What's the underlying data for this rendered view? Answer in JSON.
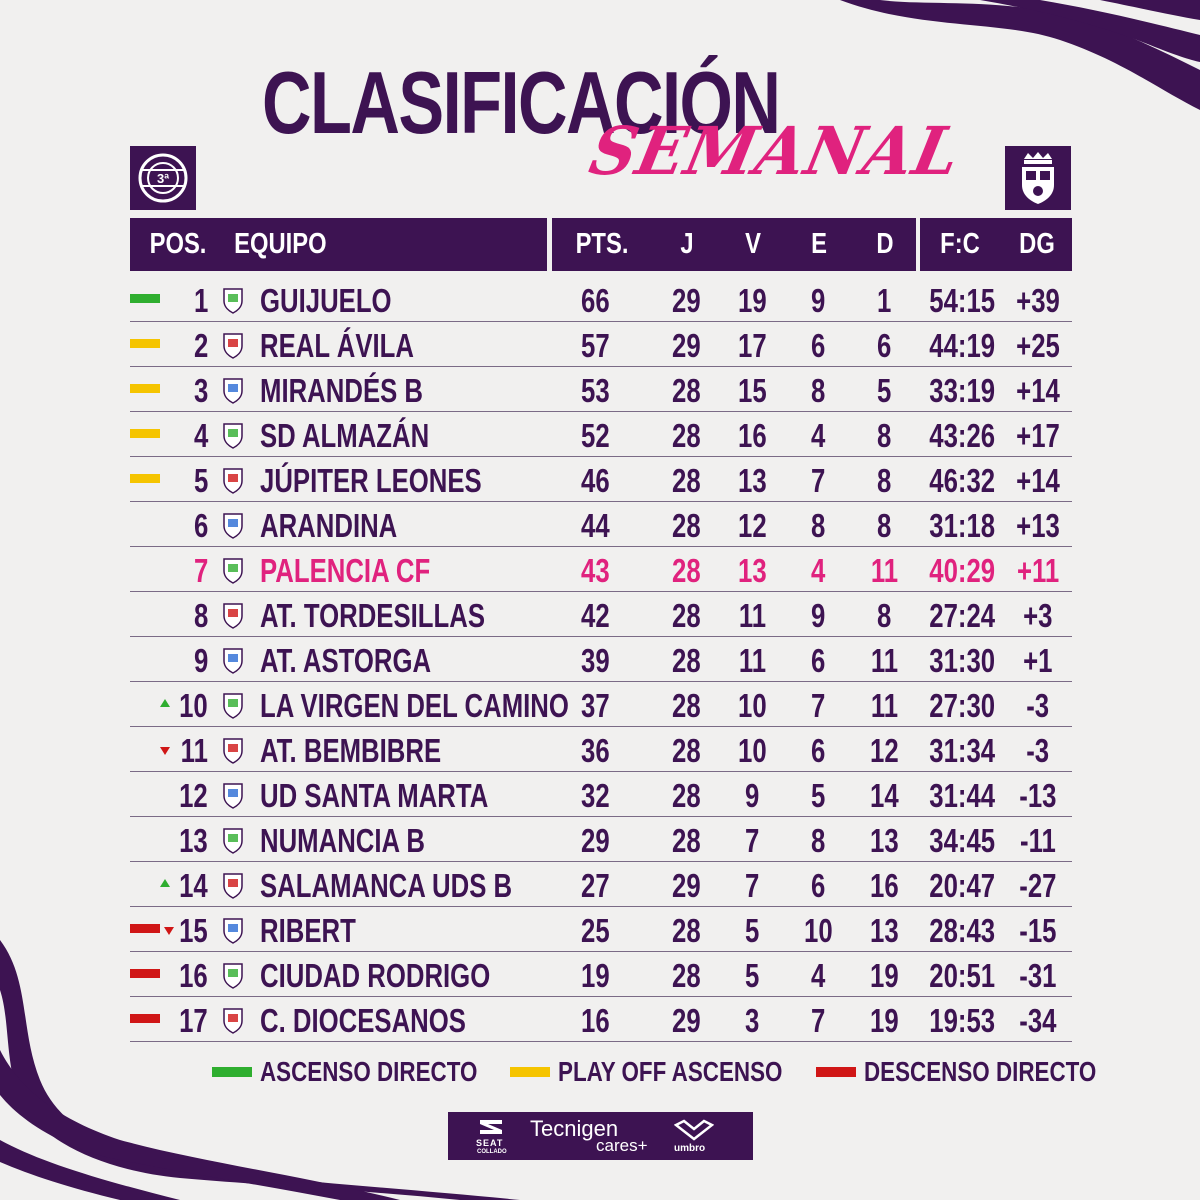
{
  "title": "CLASIFICACIÓN",
  "subtitle": "SEMANAL",
  "left_badge": {
    "text": "3ª",
    "icon": "league-logo-icon"
  },
  "right_badge": {
    "icon": "club-crest-icon"
  },
  "headers": {
    "pos": "POS.",
    "team": "EQUIPO",
    "pts": "PTS.",
    "j": "J",
    "v": "V",
    "e": "E",
    "d": "D",
    "fc": "F:C",
    "dg": "DG"
  },
  "colors": {
    "purple": "#3d1352",
    "pink": "#e0227e",
    "green": "#2fae2f",
    "yellow": "#f5c400",
    "red": "#d01616"
  },
  "rows": [
    {
      "pos": "1",
      "team": "GUIJUELO",
      "pts": "66",
      "j": "29",
      "v": "19",
      "e": "9",
      "d": "1",
      "fc": "54:15",
      "dg": "+39",
      "marker": "green",
      "arrow": ""
    },
    {
      "pos": "2",
      "team": "REAL ÁVILA",
      "pts": "57",
      "j": "29",
      "v": "17",
      "e": "6",
      "d": "6",
      "fc": "44:19",
      "dg": "+25",
      "marker": "yellow",
      "arrow": ""
    },
    {
      "pos": "3",
      "team": "MIRANDÉS B",
      "pts": "53",
      "j": "28",
      "v": "15",
      "e": "8",
      "d": "5",
      "fc": "33:19",
      "dg": "+14",
      "marker": "yellow",
      "arrow": ""
    },
    {
      "pos": "4",
      "team": "SD ALMAZÁN",
      "pts": "52",
      "j": "28",
      "v": "16",
      "e": "4",
      "d": "8",
      "fc": "43:26",
      "dg": "+17",
      "marker": "yellow",
      "arrow": ""
    },
    {
      "pos": "5",
      "team": "JÚPITER LEONES",
      "pts": "46",
      "j": "28",
      "v": "13",
      "e": "7",
      "d": "8",
      "fc": "46:32",
      "dg": "+14",
      "marker": "yellow",
      "arrow": ""
    },
    {
      "pos": "6",
      "team": "ARANDINA",
      "pts": "44",
      "j": "28",
      "v": "12",
      "e": "8",
      "d": "8",
      "fc": "31:18",
      "dg": "+13",
      "marker": "",
      "arrow": ""
    },
    {
      "pos": "7",
      "team": "PALENCIA CF",
      "pts": "43",
      "j": "28",
      "v": "13",
      "e": "4",
      "d": "11",
      "fc": "40:29",
      "dg": "+11",
      "marker": "",
      "arrow": "",
      "highlight": true
    },
    {
      "pos": "8",
      "team": "AT. TORDESILLAS",
      "pts": "42",
      "j": "28",
      "v": "11",
      "e": "9",
      "d": "8",
      "fc": "27:24",
      "dg": "+3",
      "marker": "",
      "arrow": ""
    },
    {
      "pos": "9",
      "team": "AT. ASTORGA",
      "pts": "39",
      "j": "28",
      "v": "11",
      "e": "6",
      "d": "11",
      "fc": "31:30",
      "dg": "+1",
      "marker": "",
      "arrow": ""
    },
    {
      "pos": "10",
      "team": "LA VIRGEN DEL CAMINO",
      "pts": "37",
      "j": "28",
      "v": "10",
      "e": "7",
      "d": "11",
      "fc": "27:30",
      "dg": "-3",
      "marker": "",
      "arrow": "up"
    },
    {
      "pos": "11",
      "team": "AT. BEMBIBRE",
      "pts": "36",
      "j": "28",
      "v": "10",
      "e": "6",
      "d": "12",
      "fc": "31:34",
      "dg": "-3",
      "marker": "",
      "arrow": "down"
    },
    {
      "pos": "12",
      "team": "UD SANTA MARTA",
      "pts": "32",
      "j": "28",
      "v": "9",
      "e": "5",
      "d": "14",
      "fc": "31:44",
      "dg": "-13",
      "marker": "",
      "arrow": ""
    },
    {
      "pos": "13",
      "team": "NUMANCIA B",
      "pts": "29",
      "j": "28",
      "v": "7",
      "e": "8",
      "d": "13",
      "fc": "34:45",
      "dg": "-11",
      "marker": "",
      "arrow": ""
    },
    {
      "pos": "14",
      "team": "SALAMANCA UDS B",
      "pts": "27",
      "j": "29",
      "v": "7",
      "e": "6",
      "d": "16",
      "fc": "20:47",
      "dg": "-27",
      "marker": "",
      "arrow": "up"
    },
    {
      "pos": "15",
      "team": "RIBERT",
      "pts": "25",
      "j": "28",
      "v": "5",
      "e": "10",
      "d": "13",
      "fc": "28:43",
      "dg": "-15",
      "marker": "red",
      "arrow": "down"
    },
    {
      "pos": "16",
      "team": "CIUDAD RODRIGO",
      "pts": "19",
      "j": "28",
      "v": "5",
      "e": "4",
      "d": "19",
      "fc": "20:51",
      "dg": "-31",
      "marker": "red",
      "arrow": ""
    },
    {
      "pos": "17",
      "team": "C. DIOCESANOS",
      "pts": "16",
      "j": "29",
      "v": "3",
      "e": "7",
      "d": "19",
      "fc": "19:53",
      "dg": "-34",
      "marker": "red",
      "arrow": ""
    }
  ],
  "legend": [
    {
      "label": "ASCENSO DIRECTO",
      "color": "green"
    },
    {
      "label": "PLAY OFF ASCENSO",
      "color": "yellow"
    },
    {
      "label": "DESCENSO DIRECTO",
      "color": "red"
    }
  ],
  "sponsors": {
    "seat": "SEAT",
    "seat_sub": "COLLADO",
    "tecnigen": "Tecnigen",
    "tecnigen_sub": "cares+",
    "umbro": "umbro"
  }
}
